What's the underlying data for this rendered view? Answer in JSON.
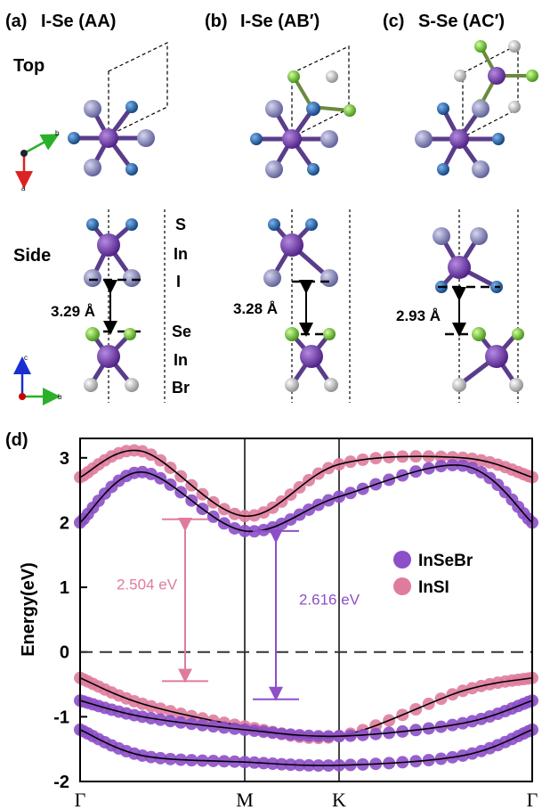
{
  "panels": {
    "a": {
      "label": "(a)",
      "title": "I-Se (AA)",
      "distance": "3.29 Å"
    },
    "b": {
      "label": "(b)",
      "title": "I-Se (AB′)",
      "distance": "3.28 Å"
    },
    "c": {
      "label": "(c)",
      "title": "S-Se (AC′)",
      "distance": "2.93 Å"
    },
    "d": {
      "label": "(d)"
    }
  },
  "views": {
    "top": "Top",
    "side": "Side"
  },
  "layers": [
    "S",
    "In",
    "I",
    "Se",
    "In",
    "Br"
  ],
  "axes_top": {
    "b": "b",
    "a": "a"
  },
  "axes_side": {
    "c": "c",
    "b": "b"
  },
  "colors": {
    "In": "#6a2fa8",
    "I_S": "#8c8cbf",
    "Se": "#6ec22a",
    "Br": "#c8c8c8",
    "blue_atom": "#1f5fa8",
    "InSeBr": "#8d4fc8",
    "InSI": "#df7c9c"
  },
  "chart_data": {
    "type": "line",
    "ylabel": "Energy(eV)",
    "ylim": [
      -2,
      3.3
    ],
    "yticks": [
      "3",
      "2",
      "1",
      "0",
      "-1",
      "-2"
    ],
    "kpath": [
      "Γ",
      "M",
      "K",
      "Γ"
    ],
    "fermi_level": 0,
    "legend": [
      "InSeBr",
      "InSI"
    ],
    "gaps": [
      {
        "series": "InSI",
        "value": "2.504 eV",
        "vbm": -0.45,
        "cbm": 2.05
      },
      {
        "series": "InSeBr",
        "value": "2.616 eV",
        "vbm": -0.73,
        "cbm": 1.87
      }
    ],
    "series": [
      {
        "name": "InSI",
        "bands": [
          [
            2.7,
            3.1,
            2.1,
            2.9,
            3.0,
            2.7
          ],
          [
            -0.4,
            -0.8,
            -1.15,
            -1.3,
            -0.6,
            -0.4
          ]
        ]
      },
      {
        "name": "InSeBr",
        "bands": [
          [
            2.0,
            2.78,
            1.87,
            2.4,
            2.88,
            2.0
          ],
          [
            -0.75,
            -1.0,
            -1.2,
            -1.3,
            -1.1,
            -0.75
          ],
          [
            -1.2,
            -1.6,
            -1.7,
            -1.75,
            -1.6,
            -1.2
          ]
        ]
      }
    ]
  }
}
